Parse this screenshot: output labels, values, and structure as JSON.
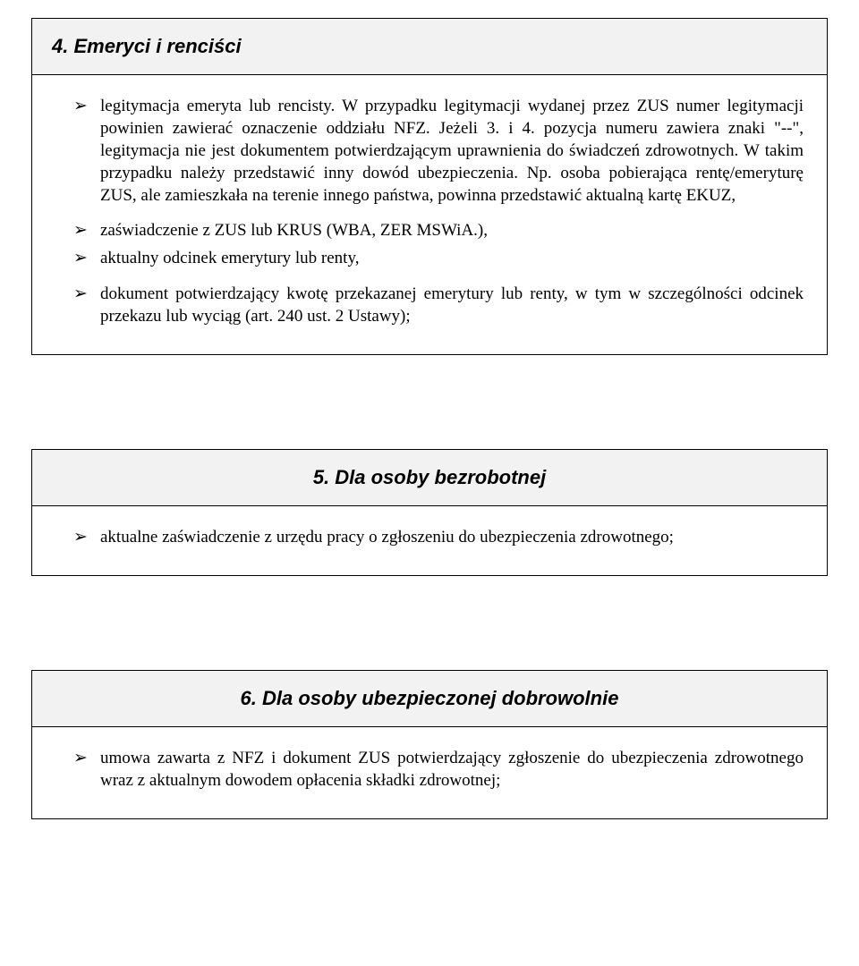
{
  "sections": [
    {
      "title": "4. Emeryci i renciści",
      "align": "left",
      "items": [
        "legitymacja emeryta lub rencisty. W przypadku legitymacji wydanej przez ZUS numer legitymacji powinien zawierać oznaczenie oddziału NFZ. Jeżeli 3. i 4. pozycja numeru zawiera znaki \"--\", legitymacja nie jest dokumentem potwierdzającym uprawnienia do świadczeń zdrowotnych. W takim przypadku należy przedstawić inny dowód ubezpieczenia. Np. osoba pobierająca rentę/emeryturę ZUS, ale zamieszkała na terenie innego państwa, powinna przedstawić aktualną kartę EKUZ,",
        "zaświadczenie z ZUS lub KRUS (WBA, ZER MSWiA.),",
        "aktualny odcinek emerytury lub renty,",
        "dokument potwierdzający kwotę przekazanej emerytury lub renty, w tym w szczególności odcinek przekazu lub wyciąg (art. 240 ust. 2 Ustawy);"
      ]
    },
    {
      "title": "5. Dla osoby  bezrobotnej",
      "align": "center",
      "items": [
        "aktualne zaświadczenie z urzędu pracy o zgłoszeniu do ubezpieczenia zdrowotnego;"
      ]
    },
    {
      "title": "6. Dla osoby ubezpieczonej dobrowolnie",
      "align": "center",
      "items": [
        "umowa zawarta z NFZ i dokument ZUS potwierdzający zgłoszenie do ubezpieczenia zdrowotnego wraz z aktualnym dowodem opłacenia składki zdrowotnej;"
      ]
    }
  ]
}
